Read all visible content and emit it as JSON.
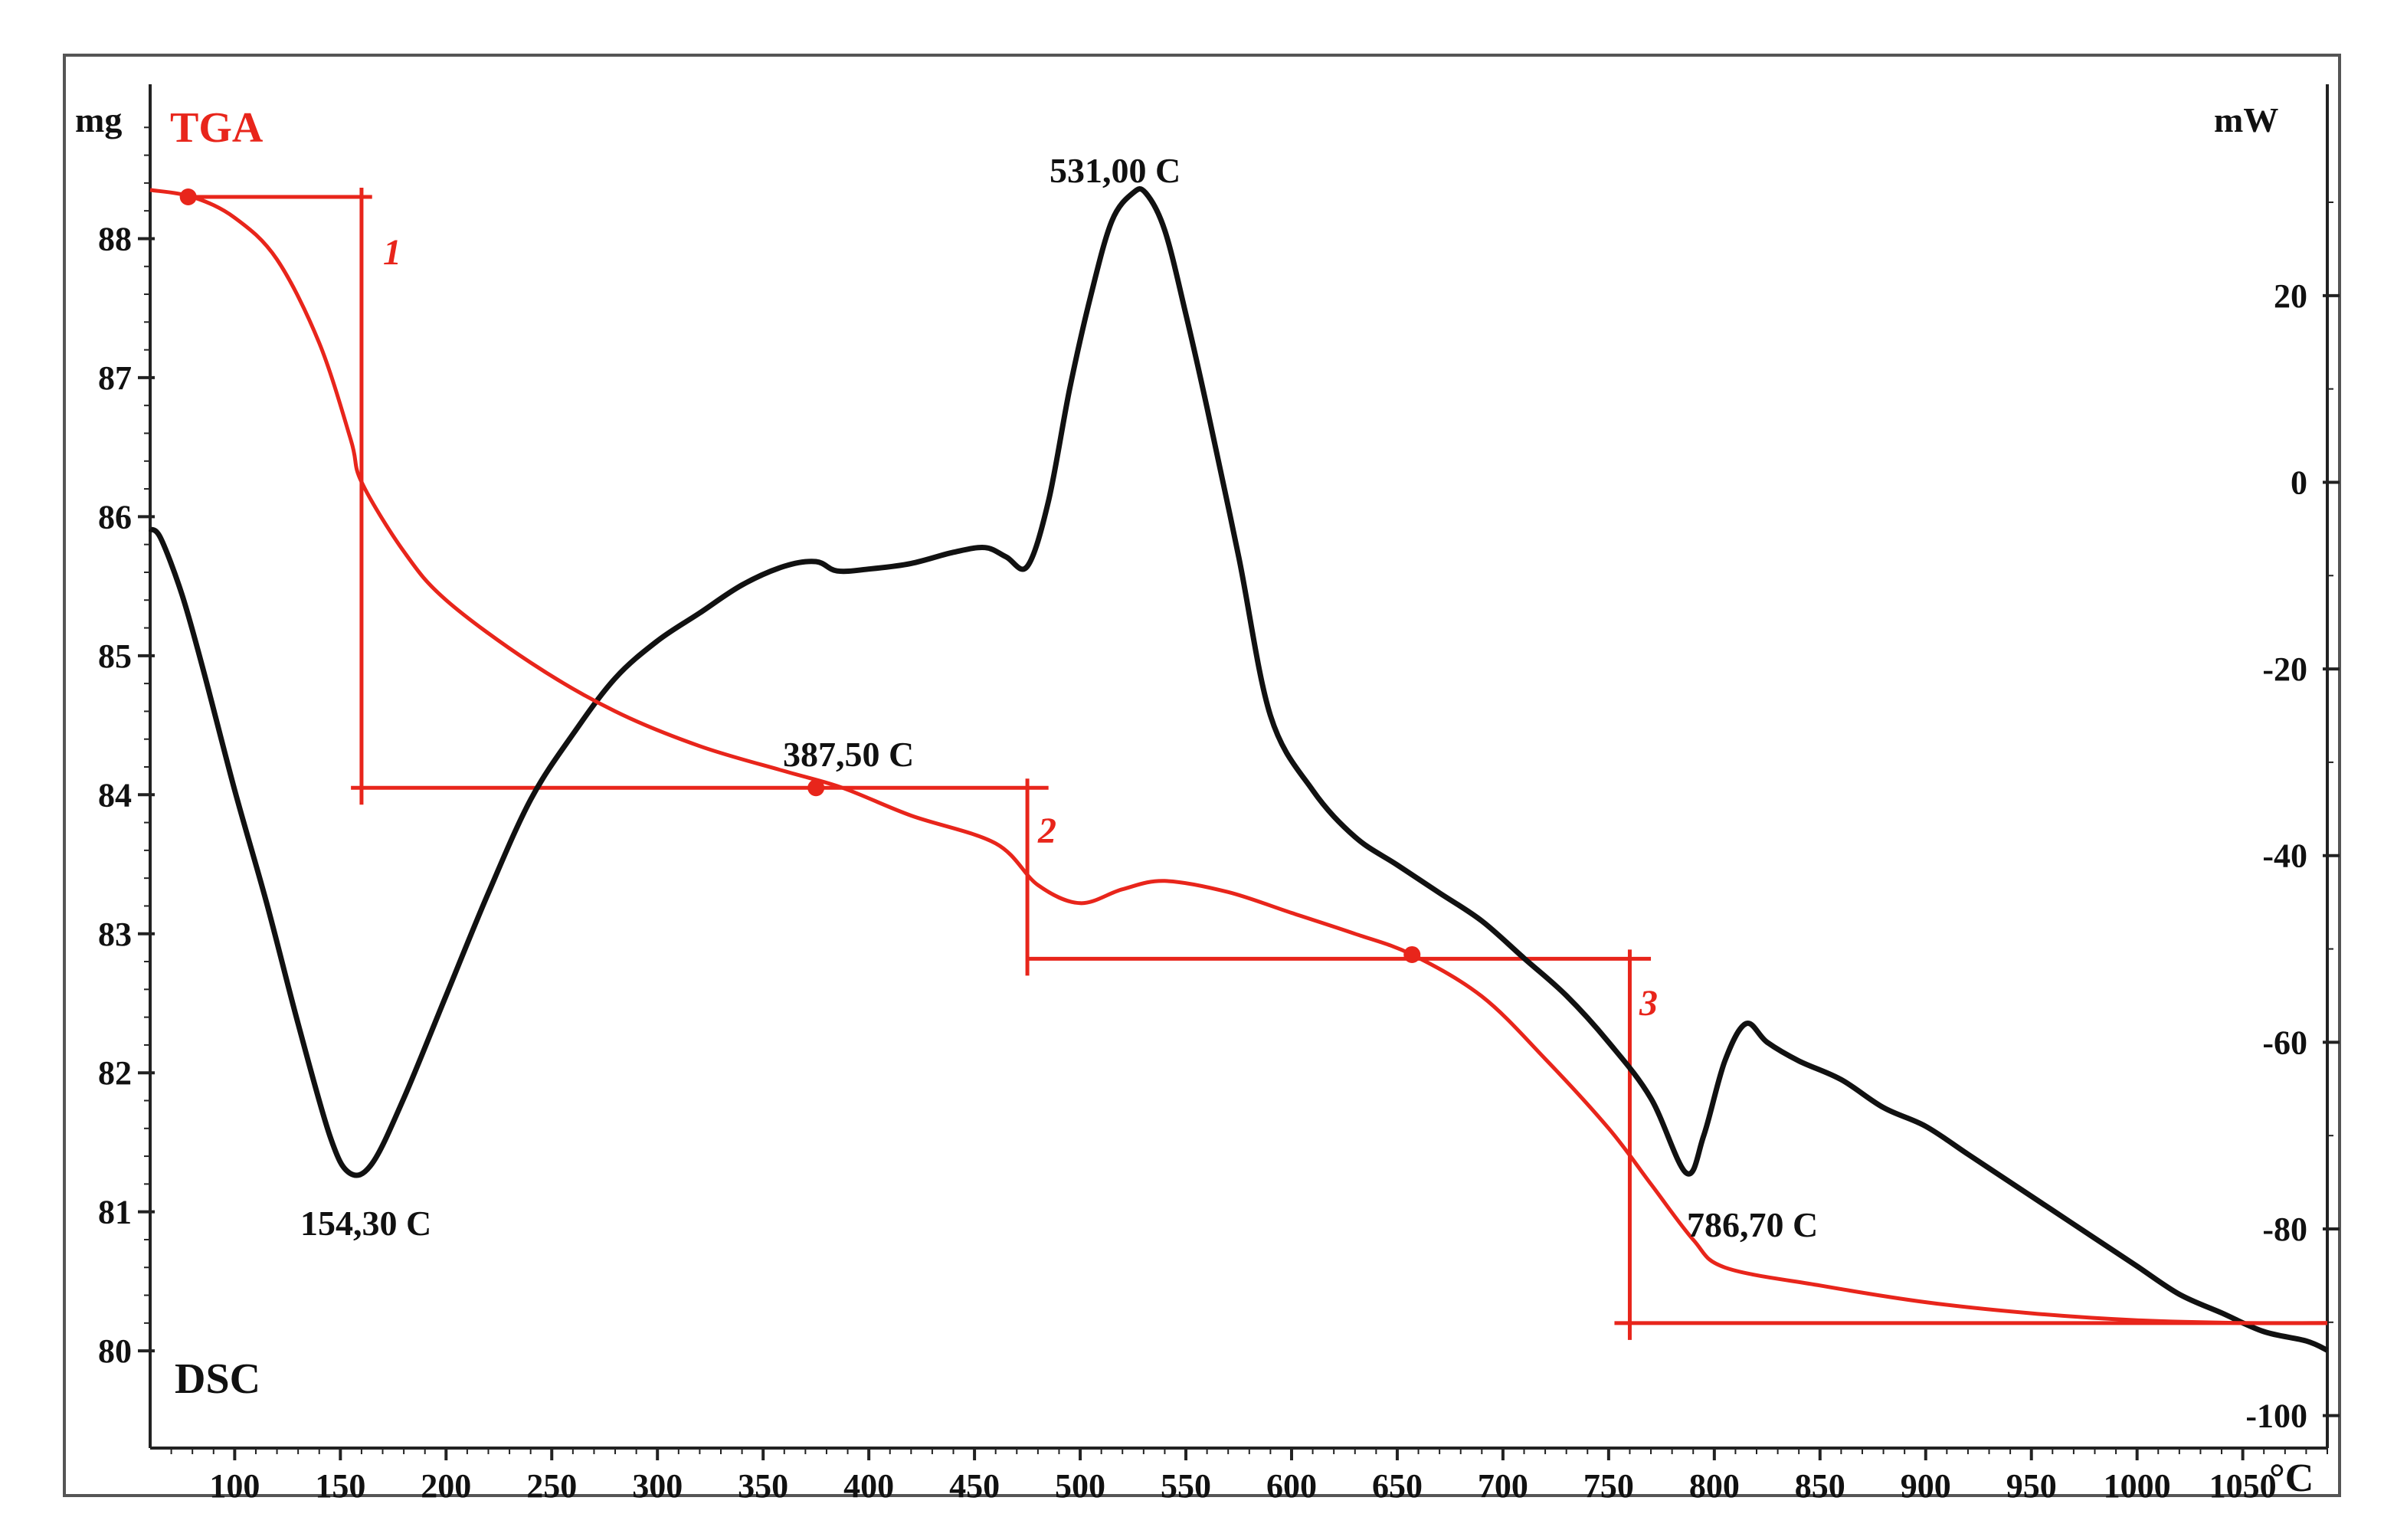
{
  "colors": {
    "tga": "#e8251b",
    "dsc": "#111111",
    "frame": "#555555",
    "axis": "#222222"
  },
  "chart_data": {
    "type": "line",
    "title": "",
    "xlabel": "°C",
    "left_axis": {
      "unit_label": "mg",
      "ylim": [
        79.4,
        89.0
      ],
      "ticks": [
        80,
        81,
        82,
        83,
        84,
        85,
        86,
        87,
        88
      ]
    },
    "right_axis": {
      "unit_label": "mW",
      "ylim": [
        -102,
        41
      ],
      "ticks": [
        -100,
        -80,
        -60,
        -40,
        -20,
        0,
        20
      ]
    },
    "xlim": [
      60,
      1090
    ],
    "x_ticks": [
      100,
      150,
      200,
      250,
      300,
      350,
      400,
      450,
      500,
      550,
      600,
      650,
      700,
      750,
      800,
      850,
      900,
      950,
      1000,
      1050
    ],
    "series": [
      {
        "name": "TGA",
        "label": "TGA",
        "axis": "left",
        "x": [
          60,
          80,
          100,
          120,
          140,
          155,
          160,
          180,
          200,
          240,
          280,
          320,
          360,
          387.5,
          420,
          460,
          480,
          500,
          520,
          540,
          570,
          600,
          630,
          657,
          690,
          720,
          750,
          770,
          790,
          805,
          850,
          900,
          950,
          1000,
          1050,
          1090
        ],
        "values": [
          88.35,
          88.3,
          88.15,
          87.85,
          87.25,
          86.55,
          86.25,
          85.75,
          85.4,
          84.95,
          84.6,
          84.35,
          84.17,
          84.05,
          83.85,
          83.65,
          83.35,
          83.22,
          83.32,
          83.38,
          83.3,
          83.15,
          83.0,
          82.85,
          82.55,
          82.1,
          81.6,
          81.2,
          80.8,
          80.6,
          80.47,
          80.35,
          80.27,
          80.22,
          80.2,
          80.2
        ]
      },
      {
        "name": "DSC",
        "label": "DSC",
        "axis": "right",
        "x": [
          60,
          65,
          75,
          85,
          100,
          115,
          130,
          145,
          154.3,
          165,
          180,
          200,
          220,
          240,
          260,
          280,
          300,
          320,
          340,
          360,
          375,
          385,
          400,
          420,
          440,
          455,
          465,
          475,
          485,
          495,
          505,
          515,
          525,
          531,
          540,
          550,
          560,
          575,
          590,
          610,
          630,
          650,
          670,
          690,
          710,
          730,
          750,
          770,
          786.7,
          795,
          805,
          815,
          825,
          840,
          860,
          880,
          900,
          920,
          940,
          960,
          980,
          1000,
          1020,
          1040,
          1060,
          1080,
          1090
        ],
        "values": [
          -5,
          -6,
          -12,
          -20,
          -33,
          -45,
          -58,
          -70,
          -74,
          -73,
          -66,
          -55,
          -44,
          -34,
          -27,
          -21,
          -17,
          -14,
          -11,
          -9,
          -8.5,
          -9.5,
          -9.3,
          -8.7,
          -7.5,
          -7,
          -8,
          -9,
          -2,
          10,
          20,
          28,
          31,
          31,
          27,
          18,
          8,
          -8,
          -25,
          -33,
          -38,
          -41,
          -44,
          -47,
          -51,
          -55,
          -60,
          -66,
          -74,
          -70,
          -62,
          -58,
          -60,
          -62,
          -64,
          -67,
          -69,
          -72,
          -75,
          -78,
          -81,
          -84,
          -87,
          -89,
          -91,
          -92,
          -93
        ]
      }
    ],
    "annotations": [
      {
        "text": "531,00 C",
        "x": 531,
        "series": "DSC",
        "kind": "peak"
      },
      {
        "text": "154,30 C",
        "x": 154.3,
        "series": "DSC",
        "kind": "minimum"
      },
      {
        "text": "786,70 C",
        "x": 786.7,
        "series": "DSC",
        "kind": "minimum"
      },
      {
        "text": "387,50 C",
        "x": 387.5,
        "series": "TGA",
        "kind": "marker"
      }
    ],
    "steps": [
      {
        "label": "1",
        "x": 160,
        "y_top": 88.3,
        "y_bottom": 84.05,
        "x_start": 80,
        "x_end": 165
      },
      {
        "label": "2",
        "x": 475,
        "y_top": 84.05,
        "y_bottom": 82.82,
        "x_start": 155,
        "x_end": 485
      },
      {
        "label": "3",
        "x": 760,
        "y_top": 82.82,
        "y_bottom": 80.2,
        "x_start": 475,
        "x_end": 770
      }
    ],
    "step_end_x": 1090,
    "markers": [
      {
        "x": 78,
        "y": 88.3
      },
      {
        "x": 375,
        "y": 84.05
      },
      {
        "x": 657,
        "y": 82.85
      }
    ]
  }
}
